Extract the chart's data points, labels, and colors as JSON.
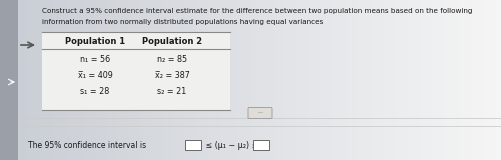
{
  "title_line1": "Construct a 95% confidence interval estimate for the difference between two population means based on the following",
  "title_line2": "information from two normally distributed populations having equal variances",
  "col1_header": "Population 1",
  "col2_header": "Population 2",
  "col1_rows": [
    "n₁ = 56",
    "x̅₁ = 409",
    "s₁ = 28"
  ],
  "col2_rows": [
    "n₂ = 85",
    "x̅₂ = 387",
    "s₂ = 21"
  ],
  "bottom_text_pre": "The 95% confidence interval is ",
  "bottom_text_mid": " ≤ (μ₁ − μ₂) ≤ ",
  "bg_left_color": "#c8cdd4",
  "bg_right_color": "#e8eaec",
  "main_bg": "#dde0e4",
  "text_color": "#1a1a1a",
  "table_bg": "#f0f0ee",
  "header_line_color": "#888888",
  "left_bar_color": "#9ba0a8",
  "ellipsis_bg": "#e0ddd8",
  "arrow_color": "#555555",
  "sep_line_color": "#cccccc"
}
